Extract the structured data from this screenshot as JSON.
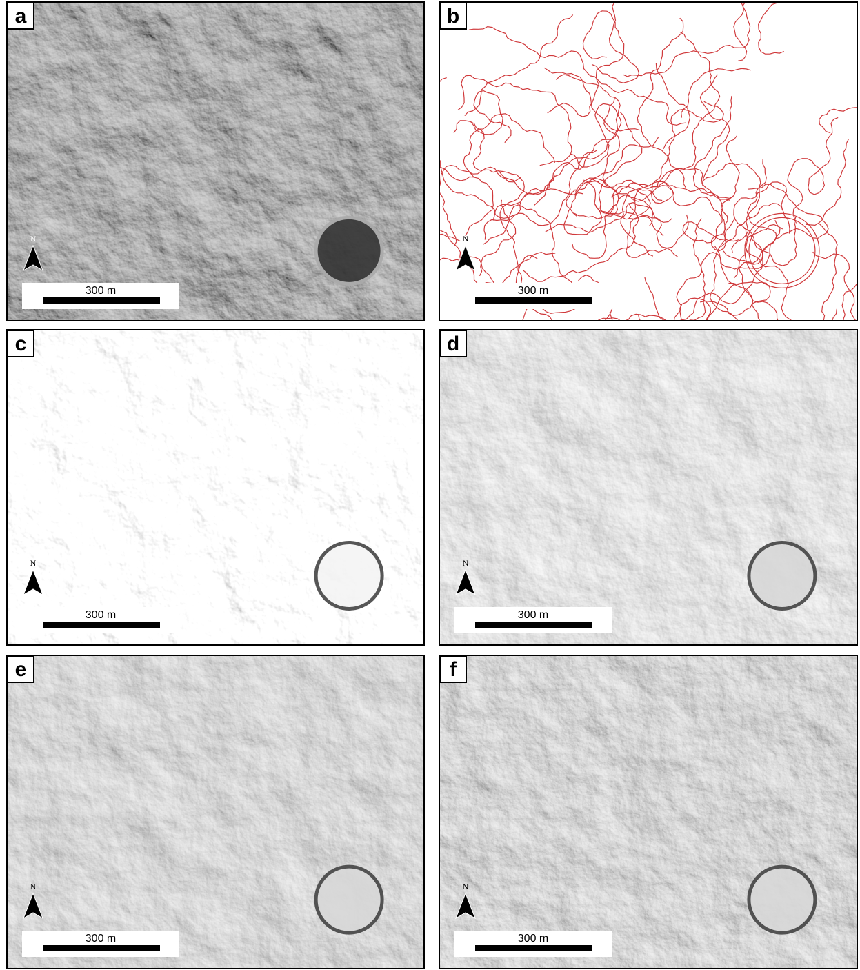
{
  "panels": [
    {
      "label": "a",
      "north": "N",
      "scale": "300 m"
    },
    {
      "label": "b",
      "north": "N",
      "scale": "300 m"
    },
    {
      "label": "c",
      "north": "N",
      "scale": "300 m"
    },
    {
      "label": "d",
      "north": "N",
      "scale": "300 m"
    },
    {
      "label": "e",
      "north": "N",
      "scale": "300 m"
    },
    {
      "label": "f",
      "north": "N",
      "scale": "300 m"
    }
  ]
}
